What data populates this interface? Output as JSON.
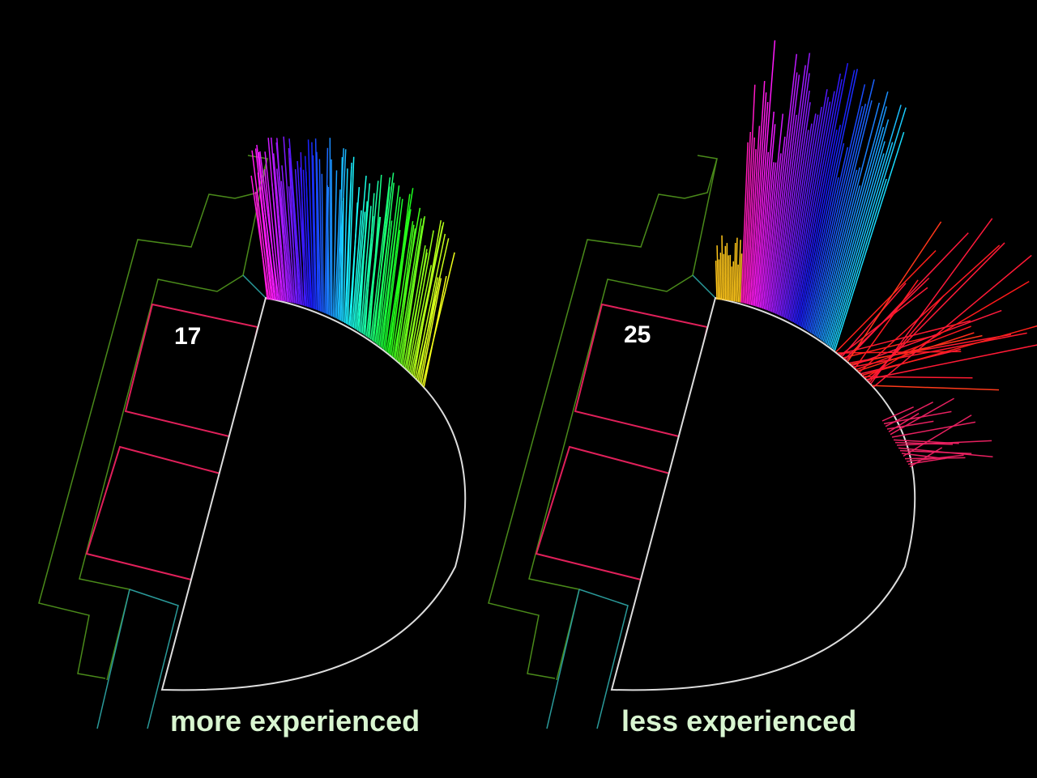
{
  "panels": [
    {
      "label": "17",
      "caption": "more experienced"
    },
    {
      "label": "25",
      "caption": "less experienced"
    }
  ]
}
